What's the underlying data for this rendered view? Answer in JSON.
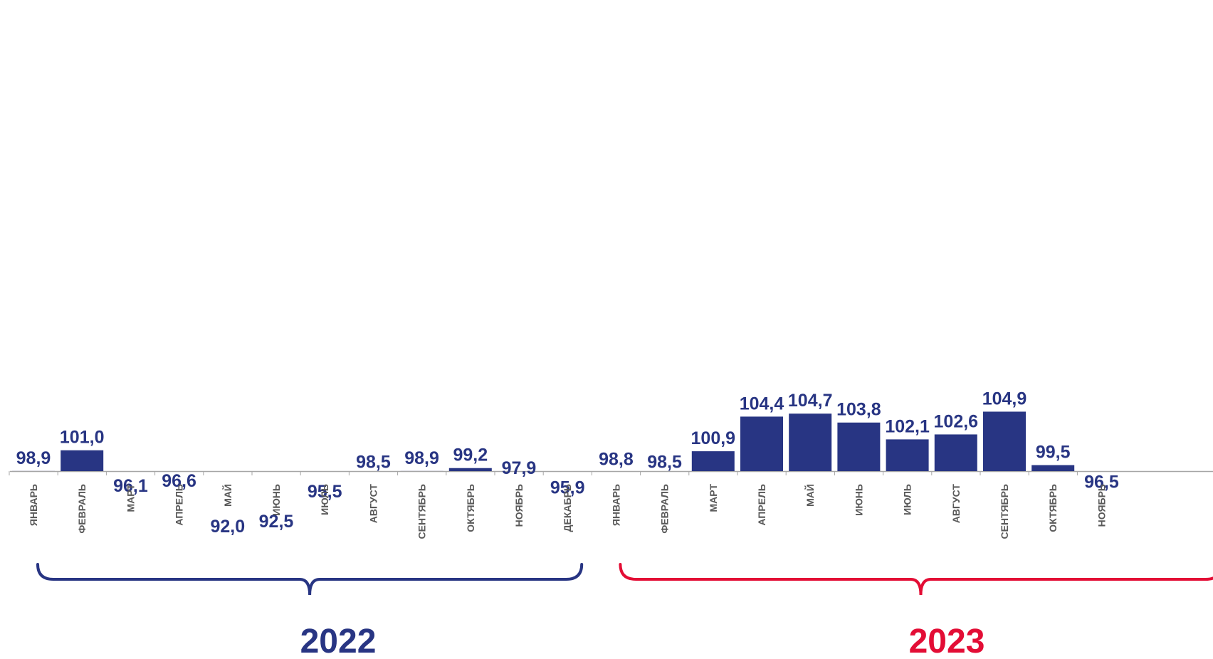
{
  "chart_data": {
    "type": "bar",
    "title": "",
    "xlabel": "",
    "ylabel": "",
    "categories": [
      "ЯНВАРЬ",
      "ФЕВРАЛЬ",
      "МАРТ",
      "АПРЕЛЬ",
      "МАЙ",
      "ИЮНЬ",
      "ИЮЛЬ",
      "АВГУСТ",
      "СЕНТЯБРЬ",
      "ОКТЯБРЬ",
      "НОЯБРЬ",
      "ДЕКАБРЬ",
      "ЯНВАРЬ",
      "ФЕВРАЛЬ",
      "МАРТ",
      "АПРЕЛЬ",
      "МАЙ",
      "ИЮНЬ",
      "ИЮЛЬ",
      "АВГУСТ",
      "СЕНТЯБРЬ",
      "ОКТЯБРЬ",
      "НОЯБРЬ"
    ],
    "values": [
      98.9,
      101.0,
      96.1,
      96.6,
      92.0,
      92.5,
      95.5,
      98.5,
      98.9,
      99.2,
      97.9,
      95.9,
      98.8,
      98.5,
      100.9,
      104.4,
      104.7,
      103.8,
      102.1,
      102.6,
      104.9,
      99.5,
      96.5
    ],
    "value_labels": [
      "98,9",
      "101,0",
      "96,1",
      "96,6",
      "92,0",
      "92,5",
      "95,5",
      "98,5",
      "98,9",
      "99,2",
      "97,9",
      "95,9",
      "98,8",
      "98,5",
      "100,9",
      "104,4",
      "104,7",
      "103,8",
      "102,1",
      "102,6",
      "104,9",
      "99,5",
      "96,5"
    ],
    "groups": [
      {
        "label": "2022",
        "start": 0,
        "end": 11,
        "color": "#283583"
      },
      {
        "label": "2023",
        "start": 12,
        "end": 22,
        "color": "#e30d35"
      }
    ],
    "bar_color": "#283583",
    "grid": false,
    "legend": "none"
  }
}
